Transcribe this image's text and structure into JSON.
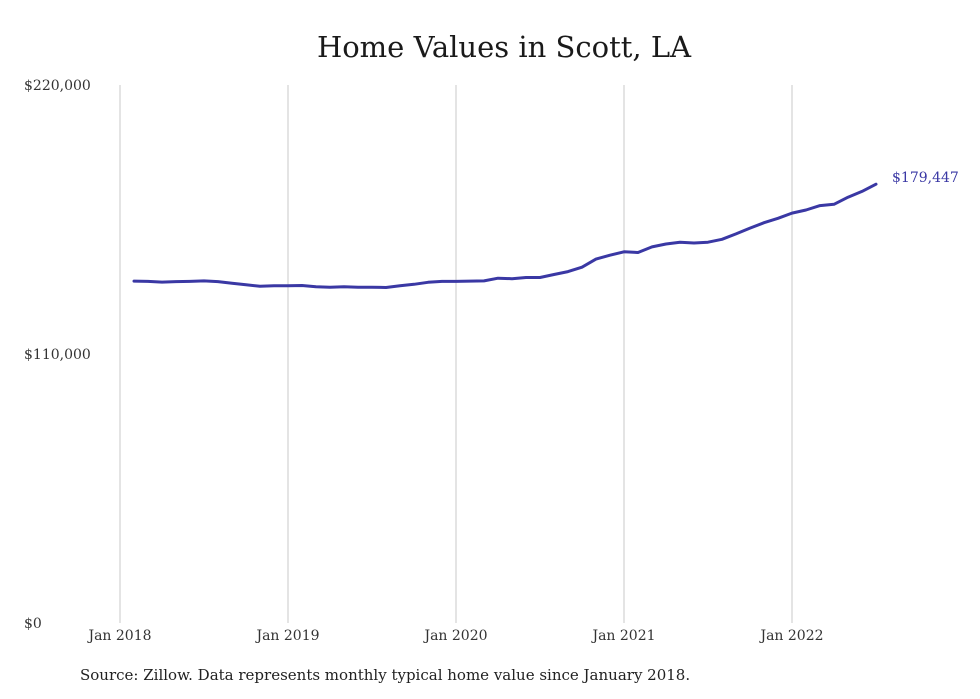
{
  "source_note": "Source: Zillow. Data represents monthly typical home value since January 2018.",
  "colors": {
    "line": "#3a38a4",
    "grid": "#c8c8c8",
    "text": "#333333"
  },
  "chart_data": {
    "type": "line",
    "title": "Home Values in Scott, LA",
    "xlabel": "",
    "ylabel": "",
    "ylim": [
      0,
      220000
    ],
    "yticks": [
      0,
      110000,
      220000
    ],
    "ytick_labels": [
      "$0",
      "$110,000",
      "$220,000"
    ],
    "xticks": [
      "2018-01",
      "2019-01",
      "2020-01",
      "2021-01",
      "2022-01"
    ],
    "xtick_labels": [
      "Jan 2018",
      "Jan 2019",
      "Jan 2020",
      "Jan 2021",
      "Jan 2022"
    ],
    "grid": "vertical",
    "end_label": "$179,447",
    "x": [
      "2018-02",
      "2018-03",
      "2018-04",
      "2018-05",
      "2018-06",
      "2018-07",
      "2018-08",
      "2018-09",
      "2018-10",
      "2018-11",
      "2018-12",
      "2019-01",
      "2019-02",
      "2019-03",
      "2019-04",
      "2019-05",
      "2019-06",
      "2019-07",
      "2019-08",
      "2019-09",
      "2019-10",
      "2019-11",
      "2019-12",
      "2020-01",
      "2020-02",
      "2020-03",
      "2020-04",
      "2020-05",
      "2020-06",
      "2020-07",
      "2020-08",
      "2020-09",
      "2020-10",
      "2020-11",
      "2020-12",
      "2021-01",
      "2021-02",
      "2021-03",
      "2021-04",
      "2021-05",
      "2021-06",
      "2021-07",
      "2021-08",
      "2021-09",
      "2021-10",
      "2021-11",
      "2021-12",
      "2022-01",
      "2022-02",
      "2022-03",
      "2022-04",
      "2022-05",
      "2022-06",
      "2022-07"
    ],
    "series": [
      {
        "values": [
          139800,
          139700,
          139400,
          139600,
          139700,
          139900,
          139600,
          138900,
          138300,
          137700,
          137900,
          137900,
          138000,
          137500,
          137300,
          137500,
          137300,
          137300,
          137200,
          137900,
          138500,
          139300,
          139700,
          139700,
          139800,
          139900,
          141000,
          140800,
          141300,
          141300,
          142500,
          143700,
          145500,
          148800,
          150400,
          151800,
          151500,
          153800,
          155000,
          155700,
          155400,
          155700,
          156900,
          159100,
          161500,
          163700,
          165500,
          167600,
          168900,
          170700,
          171200,
          174100,
          176500,
          179447
        ]
      }
    ]
  }
}
